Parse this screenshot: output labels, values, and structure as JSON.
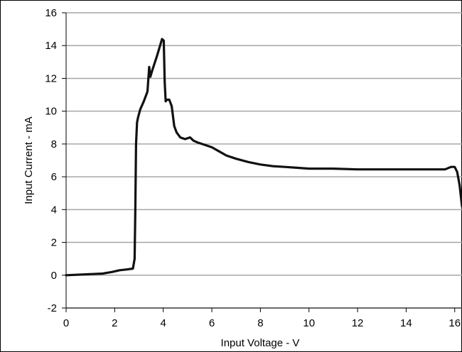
{
  "chart_data": {
    "type": "line",
    "title": "",
    "xlabel": "Input Voltage - V",
    "ylabel": "Input Current - mA",
    "xlim": [
      0,
      16.3
    ],
    "ylim": [
      -2,
      16
    ],
    "x_ticks": [
      "0",
      "2",
      "4",
      "6",
      "8",
      "10",
      "12",
      "14",
      "16"
    ],
    "y_ticks": [
      "-2",
      "0",
      "2",
      "4",
      "6",
      "8",
      "10",
      "12",
      "14",
      "16"
    ],
    "grid": "horizontal",
    "legend": "none",
    "line_color": "#111111",
    "series": [
      {
        "x": [
          0.0,
          0.8,
          1.5,
          1.9,
          2.2,
          2.5,
          2.75,
          2.82,
          2.85,
          2.88,
          2.92,
          2.96,
          3.05,
          3.2,
          3.35,
          3.42,
          3.47,
          3.55,
          3.75,
          3.95,
          4.02,
          4.06,
          4.1,
          4.15,
          4.25,
          4.35,
          4.45,
          4.55,
          4.7,
          4.9,
          5.1,
          5.25,
          5.4,
          5.7,
          6.0,
          6.3,
          6.6,
          7.0,
          7.5,
          8.0,
          8.5,
          9.0,
          9.5,
          10.0,
          11.0,
          12.0,
          13.0,
          14.0,
          15.0,
          15.6,
          15.85,
          16.0,
          16.1,
          16.2,
          16.3
        ],
        "y": [
          0.0,
          0.05,
          0.1,
          0.2,
          0.3,
          0.35,
          0.4,
          1.0,
          4.0,
          8.0,
          9.3,
          9.6,
          10.1,
          10.6,
          11.2,
          12.7,
          12.1,
          12.5,
          13.4,
          14.4,
          14.3,
          11.8,
          10.6,
          10.7,
          10.7,
          10.3,
          9.1,
          8.7,
          8.4,
          8.3,
          8.4,
          8.2,
          8.1,
          7.95,
          7.8,
          7.55,
          7.3,
          7.1,
          6.9,
          6.75,
          6.65,
          6.6,
          6.55,
          6.5,
          6.5,
          6.45,
          6.45,
          6.45,
          6.45,
          6.45,
          6.6,
          6.6,
          6.3,
          5.5,
          4.2
        ]
      }
    ]
  }
}
